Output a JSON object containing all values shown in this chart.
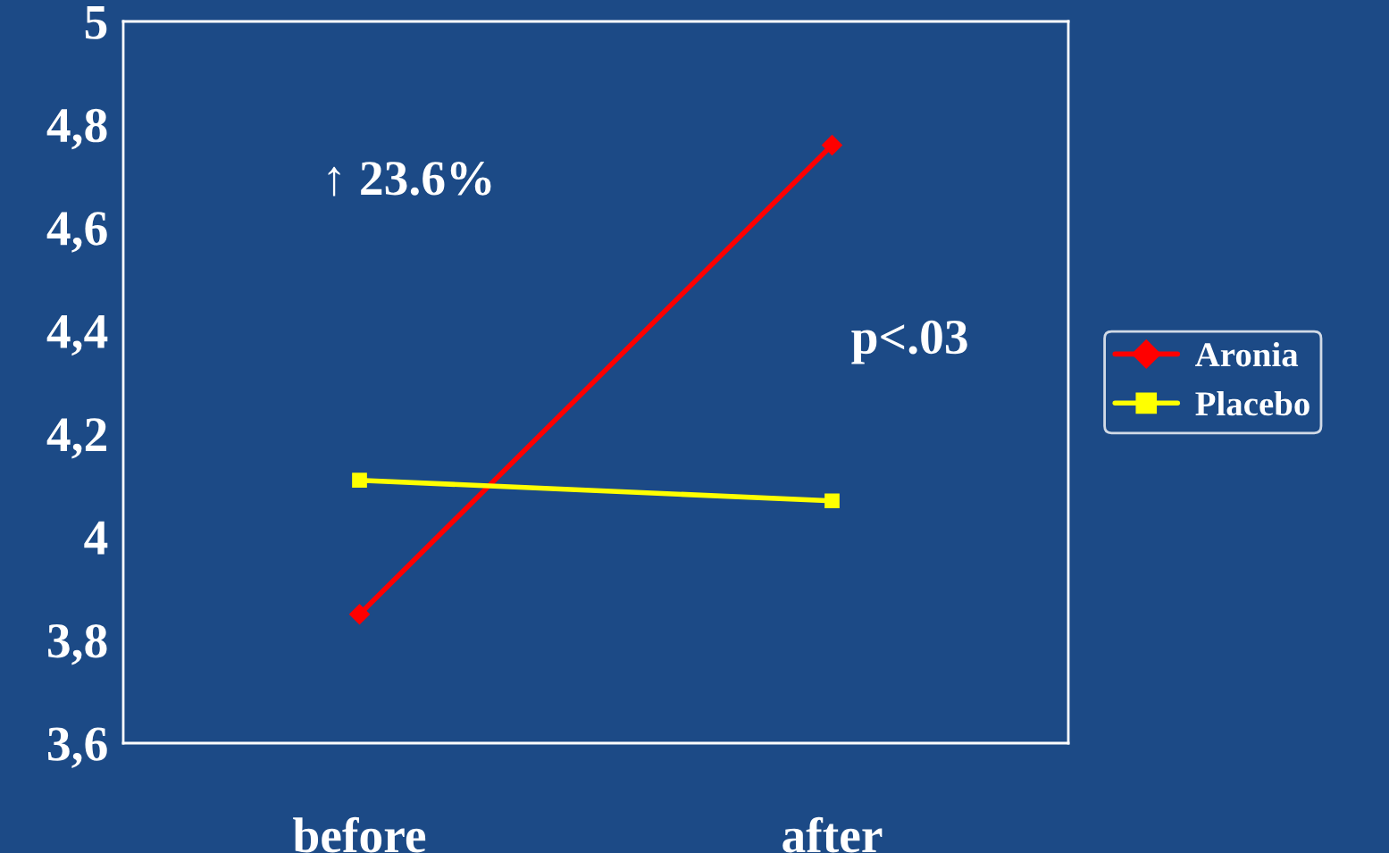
{
  "chart_data": {
    "type": "line",
    "categories": [
      "before",
      "after"
    ],
    "series": [
      {
        "name": "Aronia",
        "color": "#ff0000",
        "values": [
          3.85,
          4.76
        ],
        "marker": "diamond"
      },
      {
        "name": "Placebo",
        "color": "#ffff00",
        "values": [
          4.11,
          4.07
        ],
        "marker": "square"
      }
    ],
    "ylim": [
      3.6,
      5
    ],
    "yticks": [
      {
        "value": 3.6,
        "label": "3,6"
      },
      {
        "value": 3.8,
        "label": "3,8"
      },
      4,
      {
        "value": 4.2,
        "label": "4,2"
      },
      {
        "value": 4.4,
        "label": "4,4"
      },
      {
        "value": 4.6,
        "label": "4,6"
      },
      {
        "value": 4.8,
        "label": "4,8"
      },
      5
    ],
    "annotations": [
      "↑ 23.6%",
      "p<.03"
    ],
    "legend": "right",
    "grid": false,
    "line_style": "solid"
  }
}
